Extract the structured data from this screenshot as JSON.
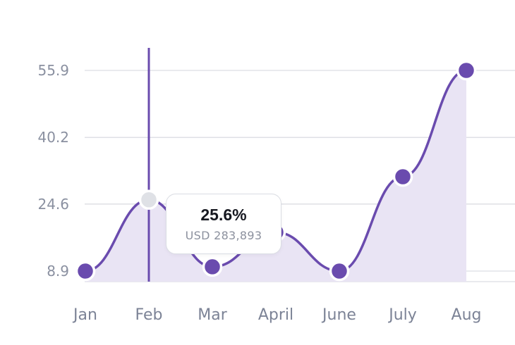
{
  "chart_data": {
    "type": "line",
    "categories": [
      "Jan",
      "Feb",
      "Mar",
      "April",
      "June",
      "July",
      "Aug"
    ],
    "series": [
      {
        "values": [
          8.9,
          25.6,
          9.9,
          18.0,
          8.9,
          31.0,
          55.9
        ]
      }
    ],
    "yticks": [
      "55.9",
      "40.2",
      "24.6",
      "8.9"
    ],
    "ylim": [
      8.9,
      55.9
    ],
    "area_fill": true,
    "grid": true,
    "colors": {
      "line": "#6a4bae",
      "area": "#e9e4f4",
      "marker": "#6a4bae",
      "highlight_marker": "#dfe1e6",
      "grid": "#dcdde3"
    },
    "highlighted_index": 1,
    "tooltip": {
      "title": "25.6%",
      "subtitle": "USD 283,893"
    }
  }
}
